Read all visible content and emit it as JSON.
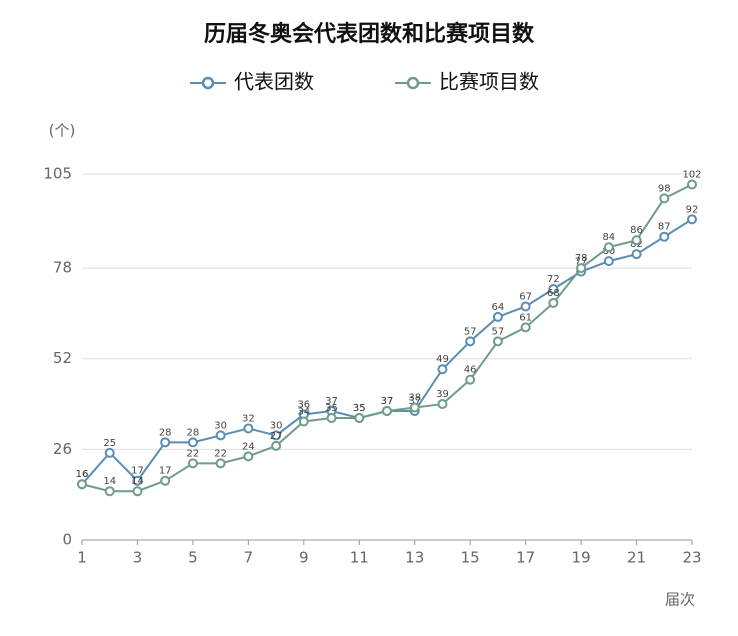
{
  "chart_data": {
    "type": "line",
    "title": "历届冬奥会代表团数和比赛项目数",
    "y_axis_label": "(个)",
    "x_axis_label": "届次",
    "x": [
      1,
      2,
      3,
      4,
      5,
      6,
      7,
      8,
      9,
      10,
      11,
      12,
      13,
      14,
      15,
      16,
      17,
      18,
      19,
      20,
      21,
      22,
      23
    ],
    "xlim": [
      1,
      23
    ],
    "xticks": [
      1,
      3,
      5,
      7,
      9,
      11,
      13,
      15,
      17,
      19,
      21,
      23
    ],
    "ylim": [
      0,
      105
    ],
    "yticks": [
      0,
      26,
      52,
      78,
      105
    ],
    "grid": true,
    "series": [
      {
        "name": "代表团数",
        "color": "#5a8cb4",
        "values": [
          16,
          25,
          17,
          28,
          28,
          30,
          32,
          30,
          36,
          37,
          35,
          37,
          37,
          49,
          57,
          64,
          67,
          72,
          77,
          80,
          82,
          87,
          92
        ]
      },
      {
        "name": "比赛项目数",
        "color": "#6f9c86",
        "values": [
          16,
          14,
          14,
          17,
          22,
          22,
          24,
          27,
          34,
          35,
          35,
          37,
          38,
          39,
          46,
          57,
          61,
          68,
          78,
          84,
          86,
          98,
          102
        ]
      }
    ]
  }
}
